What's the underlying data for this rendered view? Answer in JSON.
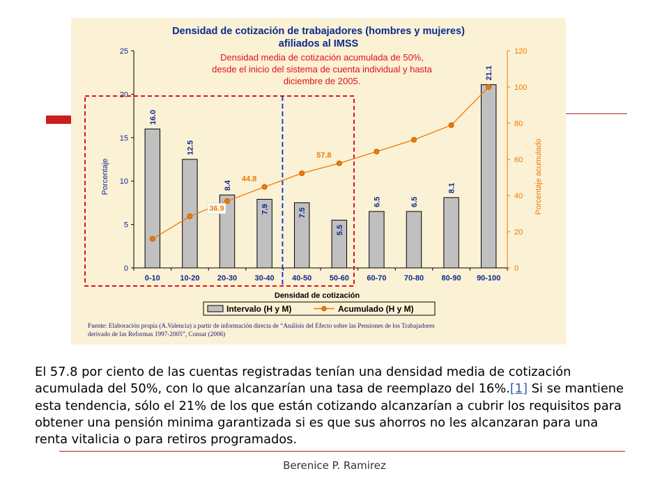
{
  "chart_data": {
    "type": "bar",
    "title": "Densidad de cotización de trabajadores (hombres y mujeres) afiliados al IMSS",
    "title_lines": [
      "Densidad de cotización de trabajadores (hombres y mujeres)",
      "afiliados al IMSS"
    ],
    "xlabel": "Densidad de cotización",
    "ylabel_left": "Porcentaje",
    "ylabel_right": "Porcentaje acumulado",
    "categories": [
      "0-10",
      "10-20",
      "20-30",
      "30-40",
      "40-50",
      "50-60",
      "60-70",
      "70-80",
      "80-90",
      "90-100"
    ],
    "ylim_left": [
      0,
      25
    ],
    "ylim_right": [
      0,
      120
    ],
    "yticks_left": [
      "0",
      "5",
      "10",
      "15",
      "20",
      "25"
    ],
    "yticks_right": [
      "0",
      "20",
      "40",
      "60",
      "80",
      "100",
      "120"
    ],
    "series": [
      {
        "name": "Intervalo (H y M)",
        "type": "bar",
        "axis": "left",
        "values": [
          16.0,
          12.5,
          8.4,
          7.9,
          7.5,
          5.5,
          6.5,
          6.5,
          8.1,
          21.1
        ],
        "labels": [
          "16.0",
          "12.5",
          "8.4",
          "7.9",
          "7.5",
          "5.5",
          "6.5",
          "6.5",
          "8.1",
          "21.1"
        ]
      },
      {
        "name": "Acumulado (H y M)",
        "type": "line",
        "axis": "right",
        "values": [
          16.0,
          28.5,
          36.9,
          44.8,
          52.3,
          57.8,
          64.3,
          70.8,
          78.9,
          100.0
        ],
        "point_labels": {
          "2": "36.9",
          "3": "44.8",
          "5": "57.8"
        }
      }
    ],
    "annotation": [
      "Densidad media de cotización acumulada de 50%,",
      "desde el inicio del sistema de cuenta individual y hasta",
      "diciembre de 2005."
    ],
    "legend_position": "bottom",
    "colors": {
      "bar": "#c0c0c0",
      "line": "#f07800",
      "annotation": "#e0101a",
      "title": "#0b2a8c",
      "divider": "#1a3cd8",
      "plot_bg": "#fbf1d5"
    }
  },
  "source_note": [
    "Fuente: Elaboración propia (A.Valencia) a partir de información directa de “Análisis del Efecto sobre las Pensiones de los Trabajadores",
    "derivado de las Reformas 1997-2005”, Consar (2006)"
  ],
  "body": {
    "text_before_link": "El 57.8 por ciento de las cuentas registradas tenían una densidad media de cotización acumulada del 50%, con lo que alcanzarían una tasa de reemplazo del 16%.",
    "link": "[1]",
    "text_after_link": " Si se mantiene esta tendencia, sólo el 21% de los que están cotizando alcanzarían a cubrir los requisitos para obtener una pensión minima garantizada si es que sus ahorros no les alcanzaran para una renta vitalicia o para retiros programados."
  },
  "footer": "Berenice P. Ramirez"
}
